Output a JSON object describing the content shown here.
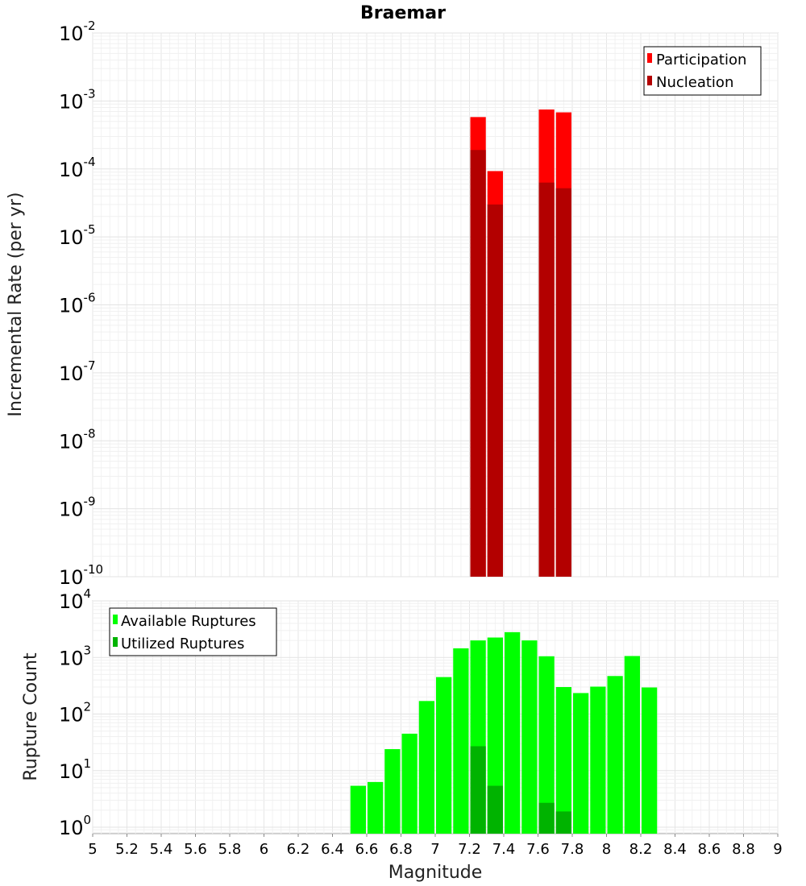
{
  "chart_data": [
    {
      "type": "bar",
      "panel": "top",
      "title": "Braemar",
      "xlabel": "",
      "ylabel": "Incremental Rate (per yr)",
      "yscale": "log",
      "ylim": [
        1e-10,
        0.01
      ],
      "xlim": [
        5,
        9
      ],
      "grid": true,
      "legend_position": "top-right",
      "bar_width": 0.1,
      "series": [
        {
          "name": "Participation",
          "color": "#ff0000",
          "x": [
            7.25,
            7.35,
            7.65,
            7.75
          ],
          "values": [
            0.00058,
            9.3e-05,
            0.00075,
            0.00068
          ]
        },
        {
          "name": "Nucleation",
          "color": "#b30000",
          "x": [
            7.25,
            7.35,
            7.65,
            7.75
          ],
          "values": [
            0.00019,
            3e-05,
            6.3e-05,
            5.2e-05
          ]
        }
      ]
    },
    {
      "type": "bar",
      "panel": "bottom",
      "title": "",
      "xlabel": "Magnitude",
      "ylabel": "Rupture Count",
      "yscale": "log",
      "ylim": [
        0.77,
        10000
      ],
      "xlim": [
        5,
        9
      ],
      "grid": true,
      "legend_position": "top-left",
      "bar_width": 0.1,
      "x_ticks": [
        "5",
        "5.2",
        "5.4",
        "5.6",
        "5.8",
        "6",
        "6.2",
        "6.4",
        "6.6",
        "6.8",
        "7",
        "7.2",
        "7.4",
        "7.6",
        "7.8",
        "8",
        "8.2",
        "8.4",
        "8.6",
        "8.8",
        "9"
      ],
      "series": [
        {
          "name": "Available Ruptures",
          "color": "#00ff00",
          "x": [
            6.55,
            6.65,
            6.75,
            6.85,
            6.95,
            7.05,
            7.15,
            7.25,
            7.35,
            7.45,
            7.55,
            7.65,
            7.75,
            7.85,
            7.95,
            8.05,
            8.15,
            8.25
          ],
          "values": [
            5.4,
            6.3,
            24,
            45,
            170,
            450,
            1450,
            2000,
            2250,
            2800,
            2000,
            1050,
            300,
            235,
            305,
            470,
            1060,
            295
          ]
        },
        {
          "name": "Utilized Ruptures",
          "color": "#00b300",
          "x": [
            7.25,
            7.35,
            7.65,
            7.75
          ],
          "values": [
            27,
            5.4,
            2.7,
            1.9
          ]
        }
      ]
    }
  ]
}
